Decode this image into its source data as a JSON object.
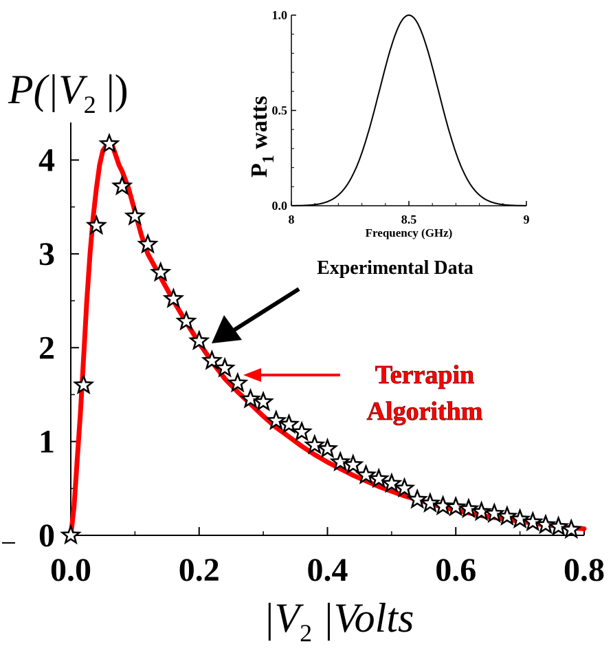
{
  "chart_data": [
    {
      "type": "line",
      "ylabel": {
        "prefix": "P(|V",
        "sub": "2",
        "suffix": " |)"
      },
      "xlabel": {
        "prefix": "|V",
        "sub": "2",
        "suffix": " |Volts"
      },
      "xlim": [
        0,
        0.8
      ],
      "ylim": [
        0,
        4.4
      ],
      "x_ticks": [
        "0.0",
        "0.2",
        "0.4",
        "0.6",
        "0.8"
      ],
      "x_tick_values": [
        0,
        0.2,
        0.4,
        0.6,
        0.8
      ],
      "y_ticks": [
        "0",
        "1",
        "2",
        "3",
        "4"
      ],
      "y_tick_values": [
        0,
        1,
        2,
        3,
        4
      ],
      "grid": false,
      "series": [
        {
          "name": "Terrapin Algorithm",
          "style": "line",
          "color": "#ff0000",
          "x": [
            0,
            0.005,
            0.01,
            0.015,
            0.02,
            0.025,
            0.03,
            0.035,
            0.04,
            0.045,
            0.05,
            0.055,
            0.06,
            0.065,
            0.07,
            0.075,
            0.08,
            0.09,
            0.1,
            0.11,
            0.12,
            0.14,
            0.16,
            0.18,
            0.2,
            0.22,
            0.24,
            0.26,
            0.28,
            0.3,
            0.32,
            0.34,
            0.36,
            0.38,
            0.4,
            0.42,
            0.44,
            0.46,
            0.48,
            0.5,
            0.52,
            0.54,
            0.56,
            0.58,
            0.6,
            0.62,
            0.64,
            0.66,
            0.68,
            0.7,
            0.72,
            0.74,
            0.76,
            0.78,
            0.8
          ],
          "y": [
            0,
            0.3,
            0.8,
            1.3,
            1.9,
            2.5,
            3.0,
            3.4,
            3.7,
            3.95,
            4.1,
            4.15,
            4.17,
            4.15,
            4.05,
            3.95,
            3.88,
            3.7,
            3.45,
            3.2,
            3.0,
            2.75,
            2.5,
            2.27,
            2.05,
            1.85,
            1.67,
            1.53,
            1.4,
            1.27,
            1.15,
            1.05,
            0.95,
            0.86,
            0.78,
            0.71,
            0.64,
            0.58,
            0.52,
            0.47,
            0.42,
            0.38,
            0.34,
            0.3,
            0.27,
            0.24,
            0.21,
            0.19,
            0.17,
            0.15,
            0.13,
            0.11,
            0.1,
            0.08,
            0.07
          ]
        },
        {
          "name": "Experimental Data",
          "style": "markers",
          "marker": "star",
          "x": [
            0.0,
            0.02,
            0.04,
            0.06,
            0.08,
            0.1,
            0.12,
            0.14,
            0.16,
            0.18,
            0.2,
            0.22,
            0.24,
            0.26,
            0.28,
            0.3,
            0.32,
            0.34,
            0.36,
            0.38,
            0.4,
            0.42,
            0.44,
            0.46,
            0.48,
            0.5,
            0.52,
            0.54,
            0.56,
            0.58,
            0.6,
            0.62,
            0.64,
            0.66,
            0.68,
            0.7,
            0.72,
            0.74,
            0.76,
            0.78
          ],
          "y": [
            0.0,
            1.6,
            3.3,
            4.17,
            3.72,
            3.4,
            3.1,
            2.8,
            2.52,
            2.28,
            2.07,
            1.86,
            1.78,
            1.62,
            1.45,
            1.42,
            1.22,
            1.18,
            1.1,
            0.96,
            0.92,
            0.78,
            0.75,
            0.64,
            0.6,
            0.55,
            0.5,
            0.38,
            0.34,
            0.31,
            0.3,
            0.28,
            0.25,
            0.23,
            0.2,
            0.17,
            0.14,
            0.11,
            0.09,
            0.06
          ]
        }
      ],
      "annotations": {
        "experimental": "Experimental Data",
        "terrapin_line1": "Terrapin",
        "terrapin_line2": "Algorithm"
      }
    },
    {
      "type": "line",
      "xlabel": "Frequency (GHz)",
      "ylabel": {
        "main": "P",
        "sub": "1",
        "suffix": " watts"
      },
      "xlim": [
        8,
        9
      ],
      "ylim": [
        0,
        1
      ],
      "x_ticks": [
        "8",
        "8.5",
        "9"
      ],
      "x_tick_values": [
        8,
        8.5,
        9
      ],
      "y_ticks": [
        "0.0",
        "0.5",
        "1.0"
      ],
      "y_tick_values": [
        0,
        0.5,
        1
      ],
      "grid": false,
      "series": [
        {
          "style": "line",
          "color": "#000000",
          "function": "gaussian",
          "mean": 8.5,
          "std": 0.125,
          "peak": 1.0
        }
      ]
    }
  ],
  "colors": {
    "line": "#ff0000",
    "axis": "#000000",
    "marker_fill": "#ffffff"
  }
}
